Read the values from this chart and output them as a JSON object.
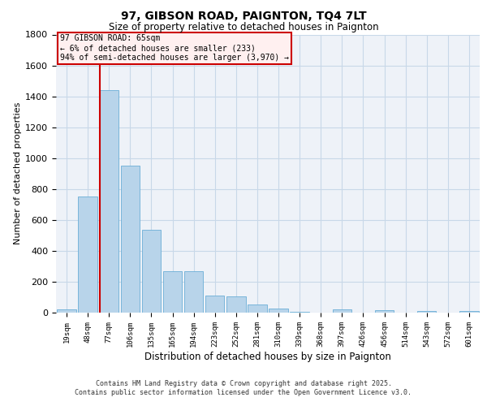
{
  "title1": "97, GIBSON ROAD, PAIGNTON, TQ4 7LT",
  "title2": "Size of property relative to detached houses in Paignton",
  "xlabel": "Distribution of detached houses by size in Paignton",
  "ylabel": "Number of detached properties",
  "categories": [
    "19sqm",
    "48sqm",
    "77sqm",
    "106sqm",
    "135sqm",
    "165sqm",
    "194sqm",
    "223sqm",
    "252sqm",
    "281sqm",
    "310sqm",
    "339sqm",
    "368sqm",
    "397sqm",
    "426sqm",
    "456sqm",
    "514sqm",
    "543sqm",
    "572sqm",
    "601sqm"
  ],
  "values": [
    22,
    750,
    1440,
    950,
    535,
    270,
    270,
    110,
    105,
    50,
    25,
    5,
    2,
    20,
    2,
    15,
    2,
    10,
    2,
    10
  ],
  "bar_color": "#b8d4ea",
  "bar_edge_color": "#6aaed6",
  "grid_color": "#c8d8e8",
  "background_color": "#eef2f8",
  "vline_color": "#cc0000",
  "annotation_lines": [
    "97 GIBSON ROAD: 65sqm",
    "← 6% of detached houses are smaller (233)",
    "94% of semi-detached houses are larger (3,970) →"
  ],
  "annotation_box_facecolor": "#fff0f0",
  "annotation_box_edge": "#cc0000",
  "ylim": [
    0,
    1800
  ],
  "yticks": [
    0,
    200,
    400,
    600,
    800,
    1000,
    1200,
    1400,
    1600,
    1800
  ],
  "footer1": "Contains HM Land Registry data © Crown copyright and database right 2025.",
  "footer2": "Contains public sector information licensed under the Open Government Licence v3.0."
}
